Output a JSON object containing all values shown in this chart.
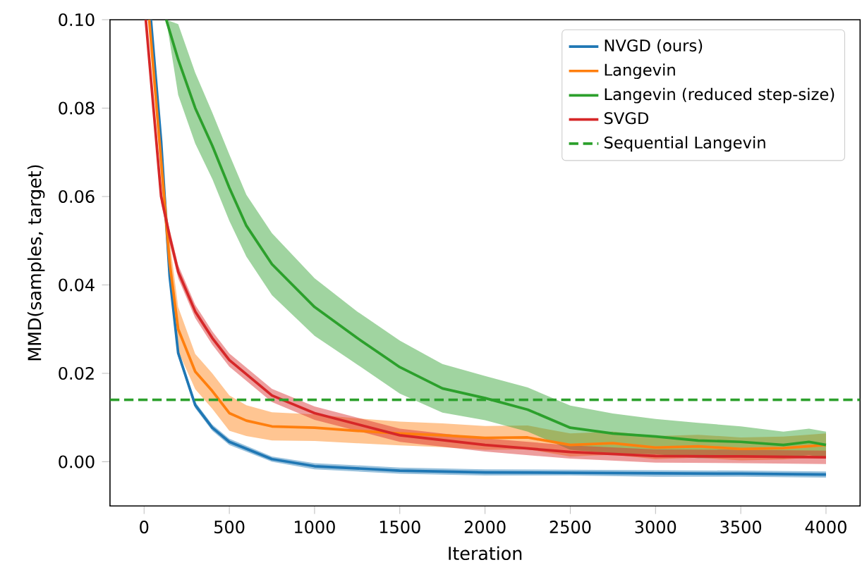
{
  "chart_data": {
    "type": "line",
    "xlabel": "Iteration",
    "ylabel": "MMD(samples, target)",
    "xlim": [
      -200,
      4200
    ],
    "ylim": [
      -0.01,
      0.1
    ],
    "xticks": [
      0,
      500,
      1000,
      1500,
      2000,
      2500,
      3000,
      3500,
      4000
    ],
    "yticks": [
      {
        "value": 0,
        "label": "0.00"
      },
      {
        "value": 0.02,
        "label": "0.02"
      },
      {
        "value": 0.04,
        "label": "0.04"
      },
      {
        "value": 0.06,
        "label": "0.06"
      },
      {
        "value": 0.08,
        "label": "0.08"
      },
      {
        "value": 0.1,
        "label": "0.10"
      }
    ],
    "grid": false,
    "legend": "top right",
    "line_style": "solid",
    "marker": "none",
    "series": [
      {
        "name": "NVGD (ours)",
        "color": "#1f77b4",
        "x": [
          40,
          100,
          150,
          200,
          300,
          400,
          500,
          750,
          1000,
          1500,
          2000,
          2500,
          3000,
          3500,
          4000
        ],
        "values": [
          0.1,
          0.0725,
          0.042,
          0.0246,
          0.0128,
          0.0077,
          0.0045,
          0.0006,
          -0.001,
          -0.002,
          -0.0024,
          -0.0025,
          -0.0026,
          -0.0027,
          -0.0029
        ],
        "lower": [
          0.099,
          0.071,
          0.041,
          0.0238,
          0.0121,
          0.007,
          0.0038,
          0.0,
          -0.0017,
          -0.0027,
          -0.0031,
          -0.0031,
          -0.0034,
          -0.0034,
          -0.0036
        ],
        "upper": [
          0.1,
          0.074,
          0.043,
          0.0254,
          0.0135,
          0.0084,
          0.0052,
          0.0012,
          -0.0003,
          -0.0013,
          -0.0017,
          -0.0018,
          -0.0019,
          -0.002,
          -0.0022
        ]
      },
      {
        "name": "Langevin",
        "color": "#ff7f0e",
        "x": [
          30,
          100,
          150,
          200,
          300,
          400,
          500,
          600,
          750,
          1000,
          1250,
          1500,
          1750,
          2000,
          2250,
          2500,
          2750,
          3000,
          3250,
          3500,
          3750,
          4000
        ],
        "values": [
          0.1,
          0.068,
          0.045,
          0.03,
          0.0204,
          0.016,
          0.011,
          0.0093,
          0.008,
          0.0077,
          0.007,
          0.0064,
          0.006,
          0.0054,
          0.0055,
          0.0038,
          0.0042,
          0.0032,
          0.0035,
          0.0029,
          0.0031,
          0.0038
        ],
        "lower": [
          0.099,
          0.064,
          0.04,
          0.025,
          0.0164,
          0.012,
          0.007,
          0.0058,
          0.0048,
          0.0047,
          0.0042,
          0.0037,
          0.0033,
          0.0027,
          0.0028,
          0.0012,
          0.0016,
          0.0006,
          0.0009,
          0.0003,
          0.0005,
          0.0012
        ],
        "upper": [
          0.1,
          0.072,
          0.05,
          0.035,
          0.0244,
          0.02,
          0.015,
          0.0128,
          0.0112,
          0.0107,
          0.0098,
          0.0091,
          0.0087,
          0.0081,
          0.0082,
          0.0064,
          0.0068,
          0.0058,
          0.0061,
          0.0055,
          0.0057,
          0.0064
        ]
      },
      {
        "name": "Langevin (reduced step-size)",
        "color": "#2ca02c",
        "x": [
          130,
          200,
          300,
          400,
          500,
          600,
          750,
          1000,
          1250,
          1500,
          1750,
          2000,
          2250,
          2500,
          2750,
          3000,
          3250,
          3500,
          3750,
          3900,
          4000
        ],
        "values": [
          0.1,
          0.091,
          0.08,
          0.0715,
          0.062,
          0.0534,
          0.0447,
          0.035,
          0.028,
          0.0214,
          0.0166,
          0.0144,
          0.0118,
          0.0077,
          0.0064,
          0.0057,
          0.0048,
          0.0045,
          0.0038,
          0.0045,
          0.0038
        ],
        "lower": [
          0.1,
          0.083,
          0.072,
          0.064,
          0.0545,
          0.0464,
          0.0377,
          0.0285,
          0.022,
          0.0154,
          0.0111,
          0.0094,
          0.0068,
          0.0027,
          0.0019,
          0.0017,
          0.0008,
          0.001,
          0.0008,
          0.0015,
          0.0008
        ],
        "upper": [
          0.1,
          0.099,
          0.088,
          0.079,
          0.0695,
          0.0604,
          0.0517,
          0.0415,
          0.034,
          0.0274,
          0.0221,
          0.0194,
          0.0168,
          0.0127,
          0.0109,
          0.0097,
          0.0088,
          0.008,
          0.0068,
          0.0075,
          0.0068
        ]
      },
      {
        "name": "SVGD",
        "color": "#d62728",
        "x": [
          10,
          100,
          150,
          200,
          300,
          400,
          500,
          750,
          1000,
          1500,
          2000,
          2500,
          3000,
          3500,
          4000
        ],
        "values": [
          0.1,
          0.06,
          0.051,
          0.043,
          0.034,
          0.028,
          0.023,
          0.015,
          0.011,
          0.006,
          0.0038,
          0.0022,
          0.0013,
          0.0012,
          0.001
        ],
        "lower": [
          0.099,
          0.0585,
          0.0495,
          0.0415,
          0.0325,
          0.0265,
          0.0215,
          0.0135,
          0.0095,
          0.0045,
          0.0023,
          0.0007,
          -0.0002,
          -0.0003,
          -0.0005
        ],
        "upper": [
          0.1,
          0.0615,
          0.0525,
          0.0445,
          0.0355,
          0.0295,
          0.0245,
          0.0165,
          0.0125,
          0.0075,
          0.0053,
          0.0037,
          0.0028,
          0.0027,
          0.0025
        ]
      }
    ],
    "ref_lines": [
      {
        "axis": "y",
        "value": 0.014,
        "label": "Sequential Langevin",
        "color": "#2ca02c",
        "line_style": "dashed"
      }
    ]
  }
}
